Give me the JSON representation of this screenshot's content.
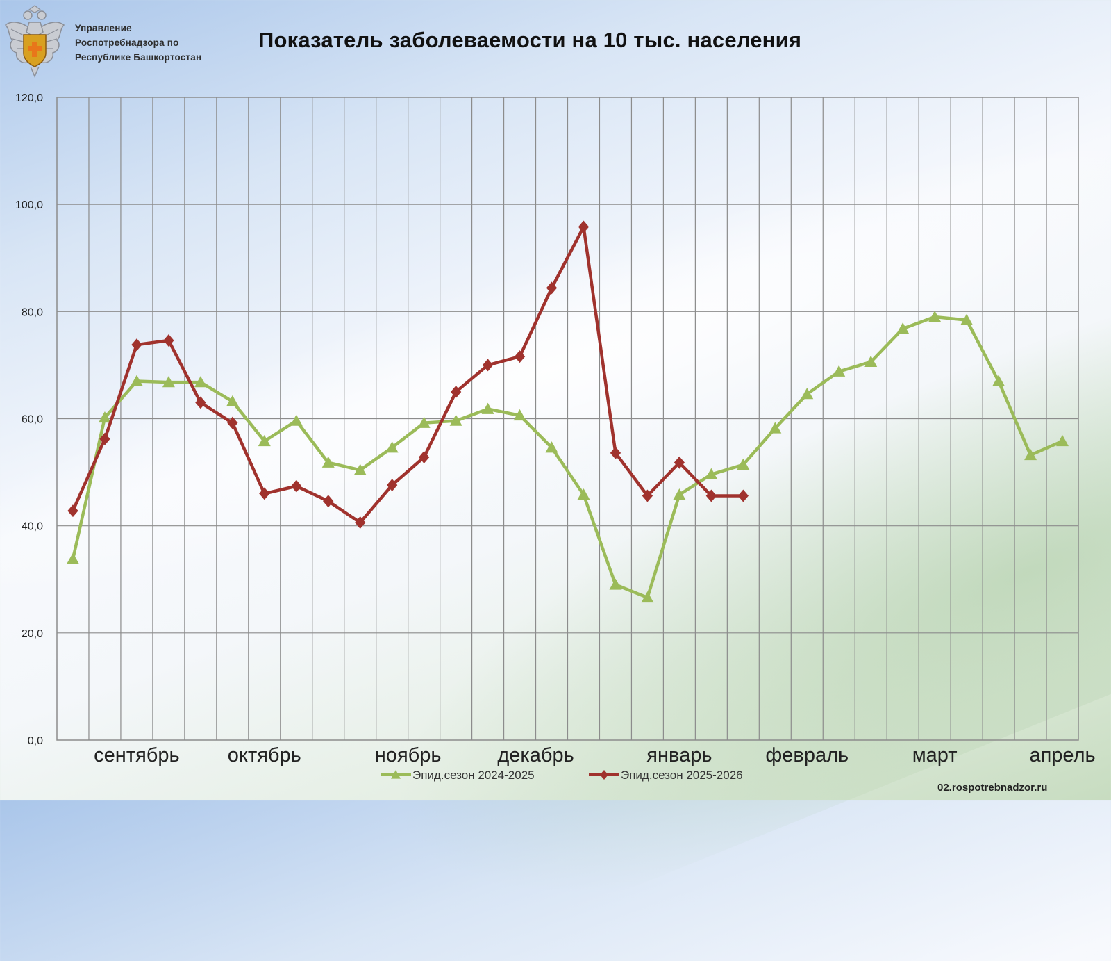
{
  "header": {
    "org_lines": [
      "Управление",
      "Роспотребнадзора по",
      "Республике Башкортостан"
    ],
    "title": "Показатель заболеваемости на 10 тыс. населения"
  },
  "footer": {
    "source": "02.rospotrebnadzor.ru"
  },
  "colors": {
    "series_2024": "#9bbb59",
    "series_2025": "#a0322d",
    "grid": "#8c8c8c",
    "emblem_gold": "#d8a020",
    "emblem_orange": "#e8761a"
  },
  "chart_data": {
    "type": "line",
    "title": "Показатель заболеваемости на 10 тыс. населения",
    "xlabel": "",
    "ylabel": "",
    "ylim": [
      0,
      120
    ],
    "y_ticks": [
      "0,0",
      "20,0",
      "40,0",
      "60,0",
      "80,0",
      "100,0",
      "120,0"
    ],
    "grid": true,
    "legend_position": "bottom",
    "x_count": 32,
    "month_labels": [
      {
        "label": "сентябрь",
        "at": 2.5
      },
      {
        "label": "октябрь",
        "at": 6.5
      },
      {
        "label": "ноябрь",
        "at": 11
      },
      {
        "label": "декабрь",
        "at": 15
      },
      {
        "label": "январь",
        "at": 19.5
      },
      {
        "label": "февраль",
        "at": 23.5
      },
      {
        "label": "март",
        "at": 27.5
      },
      {
        "label": "апрель",
        "at": 31.5
      }
    ],
    "series": [
      {
        "name": "Эпид.сезон 2024-2025",
        "marker": "triangle",
        "values": [
          33.8,
          60.2,
          67.0,
          66.8,
          66.8,
          63.2,
          55.8,
          59.6,
          51.8,
          50.4,
          54.6,
          59.2,
          59.6,
          61.8,
          60.6,
          54.6,
          45.8,
          29.0,
          26.6,
          45.8,
          49.6,
          51.4,
          58.2,
          64.6,
          68.8,
          70.6,
          76.8,
          79.0,
          78.4,
          67.0,
          53.2,
          55.8
        ]
      },
      {
        "name": "Эпид.сезон 2025-2026",
        "marker": "diamond",
        "values": [
          42.8,
          56.2,
          73.8,
          74.6,
          63.0,
          59.2,
          46.0,
          47.4,
          44.6,
          40.6,
          47.6,
          52.8,
          65.0,
          70.0,
          71.6,
          84.4,
          95.8,
          53.6,
          45.6,
          51.8,
          45.6,
          45.6
        ]
      }
    ]
  }
}
